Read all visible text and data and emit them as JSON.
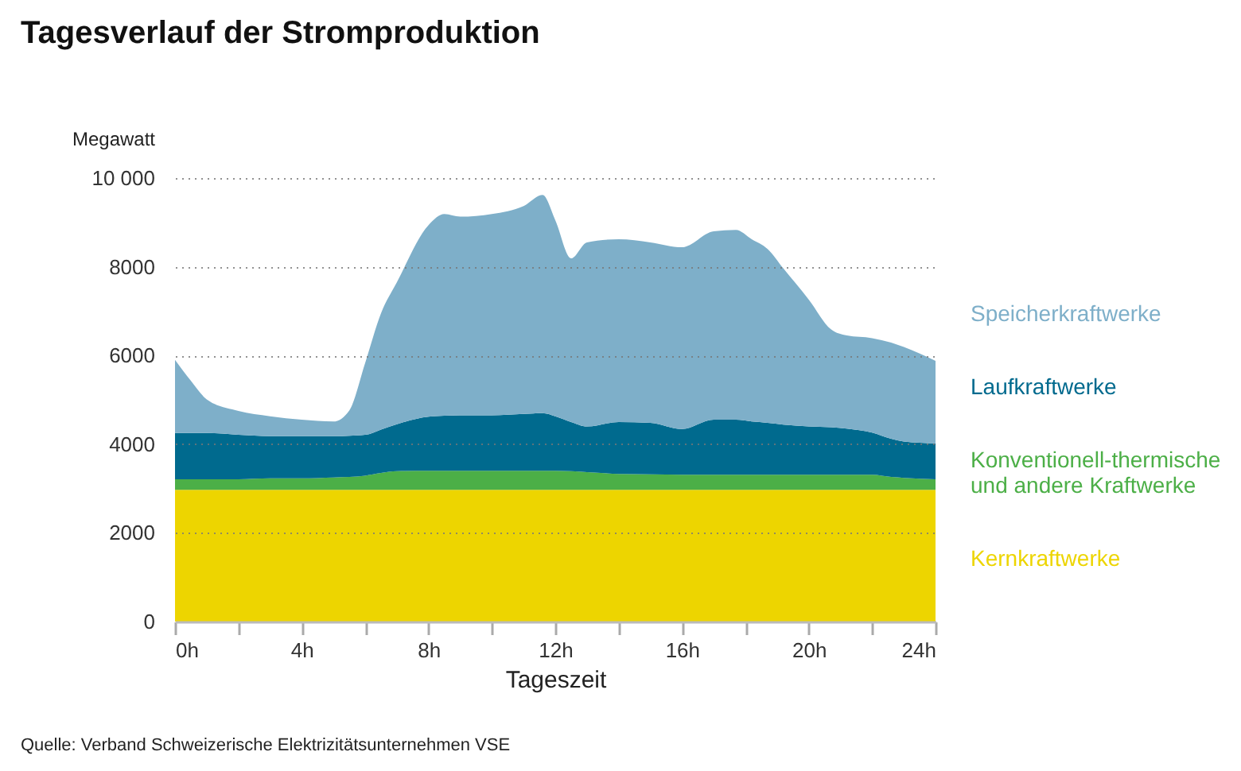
{
  "chart_data": {
    "type": "area",
    "title": "Tagesverlauf der Stromproduktion",
    "xlabel": "Tageszeit",
    "ylabel": "Megawatt",
    "annotations": [
      "Quelle: Verband Schweizerische Elektrizitätsunternehmen VSE"
    ],
    "x": [
      0,
      0.5,
      1,
      2,
      3,
      4,
      5,
      5.5,
      6,
      6.5,
      7,
      8,
      8.5,
      9,
      10,
      11,
      11.6,
      12,
      12.5,
      13,
      14,
      15,
      16,
      17,
      17.7,
      18.2,
      18.7,
      19.2,
      20,
      20.7,
      21.2,
      22,
      22.6,
      23,
      24
    ],
    "xlim": [
      0,
      24
    ],
    "xticks": [
      {
        "value": 0,
        "label": "0h"
      },
      {
        "value": 2,
        "label": null
      },
      {
        "value": 4,
        "label": "4h"
      },
      {
        "value": 6,
        "label": null
      },
      {
        "value": 8,
        "label": "8h"
      },
      {
        "value": 10,
        "label": null
      },
      {
        "value": 12,
        "label": "12h"
      },
      {
        "value": 14,
        "label": null
      },
      {
        "value": 16,
        "label": "16h"
      },
      {
        "value": 18,
        "label": null
      },
      {
        "value": 20,
        "label": "20h"
      },
      {
        "value": 22,
        "label": null
      },
      {
        "value": 24,
        "label": "24h"
      }
    ],
    "ylim": [
      0,
      10000
    ],
    "yticks": [
      0,
      2000,
      4000,
      6000,
      8000,
      {
        "value": 10000,
        "label": "10 000"
      }
    ],
    "grid": "y",
    "legend": "right",
    "stacked": true,
    "series": [
      {
        "name": "Kernkraftwerke",
        "color": "#edd500",
        "values": [
          2970,
          2970,
          2970,
          2970,
          2970,
          2970,
          2970,
          2970,
          2970,
          2970,
          2970,
          2970,
          2970,
          2970,
          2970,
          2970,
          2970,
          2970,
          2970,
          2970,
          2970,
          2970,
          2970,
          2970,
          2970,
          2970,
          2970,
          2970,
          2970,
          2970,
          2970,
          2970,
          2970,
          2970,
          2970
        ]
      },
      {
        "name": "Konventionell-thermische und andere Kraftwerke",
        "color": "#4caf47",
        "values": [
          240,
          240,
          240,
          240,
          260,
          260,
          280,
          290,
          320,
          380,
          420,
          430,
          430,
          430,
          430,
          430,
          430,
          430,
          420,
          400,
          360,
          350,
          340,
          340,
          340,
          340,
          340,
          340,
          340,
          340,
          340,
          340,
          290,
          270,
          240
        ]
      },
      {
        "name": "Laufkraftwerke",
        "color": "#006a8e",
        "values": [
          1040,
          1040,
          1040,
          1000,
          950,
          950,
          930,
          930,
          920,
          980,
          1060,
          1220,
          1240,
          1250,
          1250,
          1280,
          1300,
          1230,
          1110,
          1030,
          1170,
          1160,
          1030,
          1240,
          1240,
          1200,
          1170,
          1130,
          1090,
          1070,
          1040,
          950,
          860,
          820,
          810
        ]
      },
      {
        "name": "Speicherkraftwerke",
        "color": "#7eafc9",
        "values": [
          1650,
          1180,
          760,
          540,
          450,
          370,
          330,
          570,
          1620,
          2620,
          3200,
          4320,
          4550,
          4480,
          4540,
          4690,
          4920,
          4420,
          3690,
          4150,
          4120,
          4070,
          4100,
          4250,
          4280,
          4110,
          3920,
          3520,
          2860,
          2210,
          2100,
          2130,
          2170,
          2130,
          1860
        ]
      }
    ]
  }
}
